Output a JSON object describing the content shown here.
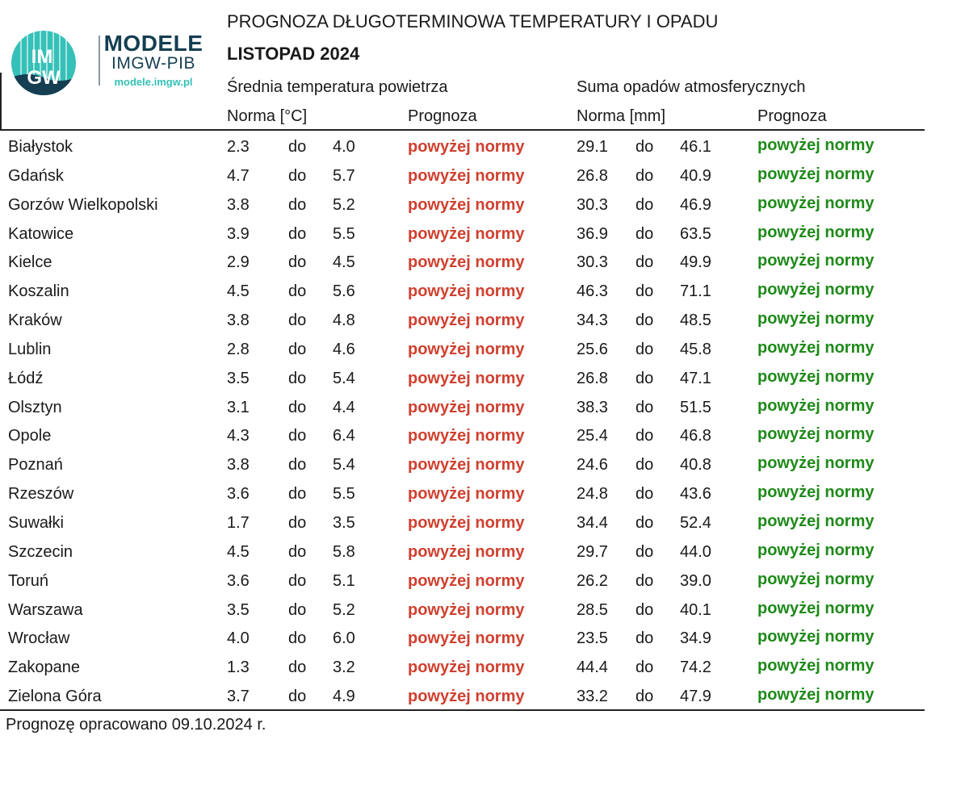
{
  "logo": {
    "mark_top": "IM",
    "mark_bottom": "GW",
    "name": "MODELE",
    "org": "IMGW-PIB",
    "url": "modele.imgw.pl",
    "circle_color": "#35c0b8",
    "dark_color": "#153e52"
  },
  "header": {
    "title": "PROGNOZA DŁUGOTERMINOWA TEMPERATURY I OPADU",
    "subtitle": "LISTOPAD 2024"
  },
  "columns": {
    "temp_group": "Średnia temperatura powietrza",
    "precip_group": "Suma opadów atmosferycznych",
    "temp_norm": "Norma [°C]",
    "temp_forecast": "Prognoza",
    "precip_norm": "Norma [mm]",
    "precip_forecast": "Prognoza"
  },
  "colors": {
    "above_temp": "#d0402f",
    "above_precip": "#1f8a1a"
  },
  "rows": [
    {
      "city": "Białystok",
      "t_lo": "2.3",
      "t_do": "do",
      "t_hi": "4.0",
      "t_fc": "powyżej normy",
      "p_lo": "29.1",
      "p_do": "do",
      "p_hi": "46.1",
      "p_fc": "powyżej normy"
    },
    {
      "city": "Gdańsk",
      "t_lo": "4.7",
      "t_do": "do",
      "t_hi": "5.7",
      "t_fc": "powyżej normy",
      "p_lo": "26.8",
      "p_do": "do",
      "p_hi": "40.9",
      "p_fc": "powyżej normy"
    },
    {
      "city": "Gorzów Wielkopolski",
      "t_lo": "3.8",
      "t_do": "do",
      "t_hi": "5.2",
      "t_fc": "powyżej normy",
      "p_lo": "30.3",
      "p_do": "do",
      "p_hi": "46.9",
      "p_fc": "powyżej normy"
    },
    {
      "city": "Katowice",
      "t_lo": "3.9",
      "t_do": "do",
      "t_hi": "5.5",
      "t_fc": "powyżej normy",
      "p_lo": "36.9",
      "p_do": "do",
      "p_hi": "63.5",
      "p_fc": "powyżej normy"
    },
    {
      "city": "Kielce",
      "t_lo": "2.9",
      "t_do": "do",
      "t_hi": "4.5",
      "t_fc": "powyżej normy",
      "p_lo": "30.3",
      "p_do": "do",
      "p_hi": "49.9",
      "p_fc": "powyżej normy"
    },
    {
      "city": "Koszalin",
      "t_lo": "4.5",
      "t_do": "do",
      "t_hi": "5.6",
      "t_fc": "powyżej normy",
      "p_lo": "46.3",
      "p_do": "do",
      "p_hi": "71.1",
      "p_fc": "powyżej normy"
    },
    {
      "city": "Kraków",
      "t_lo": "3.8",
      "t_do": "do",
      "t_hi": "4.8",
      "t_fc": "powyżej normy",
      "p_lo": "34.3",
      "p_do": "do",
      "p_hi": "48.5",
      "p_fc": "powyżej normy"
    },
    {
      "city": "Lublin",
      "t_lo": "2.8",
      "t_do": "do",
      "t_hi": "4.6",
      "t_fc": "powyżej normy",
      "p_lo": "25.6",
      "p_do": "do",
      "p_hi": "45.8",
      "p_fc": "powyżej normy"
    },
    {
      "city": "Łódź",
      "t_lo": "3.5",
      "t_do": "do",
      "t_hi": "5.4",
      "t_fc": "powyżej normy",
      "p_lo": "26.8",
      "p_do": "do",
      "p_hi": "47.1",
      "p_fc": "powyżej normy"
    },
    {
      "city": "Olsztyn",
      "t_lo": "3.1",
      "t_do": "do",
      "t_hi": "4.4",
      "t_fc": "powyżej normy",
      "p_lo": "38.3",
      "p_do": "do",
      "p_hi": "51.5",
      "p_fc": "powyżej normy"
    },
    {
      "city": "Opole",
      "t_lo": "4.3",
      "t_do": "do",
      "t_hi": "6.4",
      "t_fc": "powyżej normy",
      "p_lo": "25.4",
      "p_do": "do",
      "p_hi": "46.8",
      "p_fc": "powyżej normy"
    },
    {
      "city": "Poznań",
      "t_lo": "3.8",
      "t_do": "do",
      "t_hi": "5.4",
      "t_fc": "powyżej normy",
      "p_lo": "24.6",
      "p_do": "do",
      "p_hi": "40.8",
      "p_fc": "powyżej normy"
    },
    {
      "city": "Rzeszów",
      "t_lo": "3.6",
      "t_do": "do",
      "t_hi": "5.5",
      "t_fc": "powyżej normy",
      "p_lo": "24.8",
      "p_do": "do",
      "p_hi": "43.6",
      "p_fc": "powyżej normy"
    },
    {
      "city": "Suwałki",
      "t_lo": "1.7",
      "t_do": "do",
      "t_hi": "3.5",
      "t_fc": "powyżej normy",
      "p_lo": "34.4",
      "p_do": "do",
      "p_hi": "52.4",
      "p_fc": "powyżej normy"
    },
    {
      "city": "Szczecin",
      "t_lo": "4.5",
      "t_do": "do",
      "t_hi": "5.8",
      "t_fc": "powyżej normy",
      "p_lo": "29.7",
      "p_do": "do",
      "p_hi": "44.0",
      "p_fc": "powyżej normy"
    },
    {
      "city": "Toruń",
      "t_lo": "3.6",
      "t_do": "do",
      "t_hi": "5.1",
      "t_fc": "powyżej normy",
      "p_lo": "26.2",
      "p_do": "do",
      "p_hi": "39.0",
      "p_fc": "powyżej normy"
    },
    {
      "city": "Warszawa",
      "t_lo": "3.5",
      "t_do": "do",
      "t_hi": "5.2",
      "t_fc": "powyżej normy",
      "p_lo": "28.5",
      "p_do": "do",
      "p_hi": "40.1",
      "p_fc": "powyżej normy"
    },
    {
      "city": "Wrocław",
      "t_lo": "4.0",
      "t_do": "do",
      "t_hi": "6.0",
      "t_fc": "powyżej normy",
      "p_lo": "23.5",
      "p_do": "do",
      "p_hi": "34.9",
      "p_fc": "powyżej normy"
    },
    {
      "city": "Zakopane",
      "t_lo": "1.3",
      "t_do": "do",
      "t_hi": "3.2",
      "t_fc": "powyżej normy",
      "p_lo": "44.4",
      "p_do": "do",
      "p_hi": "74.2",
      "p_fc": "powyżej normy"
    },
    {
      "city": "Zielona Góra",
      "t_lo": "3.7",
      "t_do": "do",
      "t_hi": "4.9",
      "t_fc": "powyżej normy",
      "p_lo": "33.2",
      "p_do": "do",
      "p_hi": "47.9",
      "p_fc": "powyżej normy"
    }
  ],
  "footer": {
    "note": "Prognozę opracowano 09.10.2024 r."
  }
}
